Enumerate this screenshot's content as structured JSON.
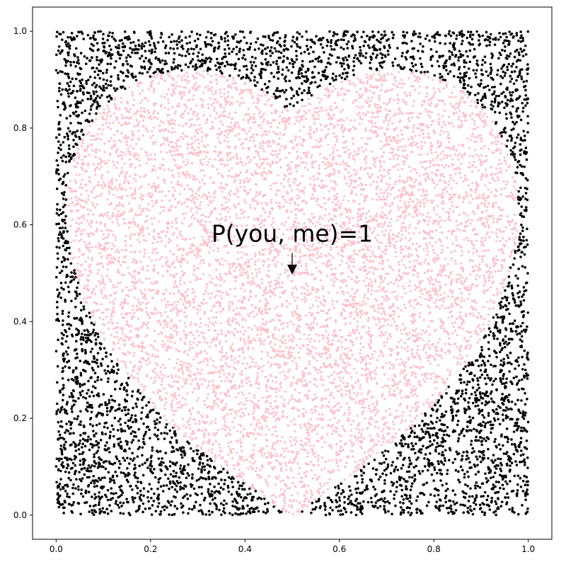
{
  "chart_data": {
    "type": "scatter",
    "title": "",
    "xlabel": "",
    "ylabel": "",
    "xlim": [
      -0.05,
      1.05
    ],
    "ylim": [
      -0.05,
      1.05
    ],
    "xticks": [
      "0.0",
      "0.2",
      "0.4",
      "0.6",
      "0.8",
      "1.0"
    ],
    "yticks": [
      "0.0",
      "0.2",
      "0.4",
      "0.6",
      "0.8",
      "1.0"
    ],
    "grid": false,
    "legend": "none",
    "points_sampled_uniformly_over": [
      [
        0,
        1
      ],
      [
        0,
        1
      ]
    ],
    "series": [
      {
        "color": "#ffc0cb",
        "region": "inside heart"
      },
      {
        "color": "#000000",
        "region": "outside heart"
      }
    ],
    "annotation": {
      "text": "P(you, me)=1",
      "text_position": [
        0.5,
        0.58
      ],
      "arrow_to": [
        0.5,
        0.5
      ],
      "arrow_color": "#000000"
    }
  }
}
